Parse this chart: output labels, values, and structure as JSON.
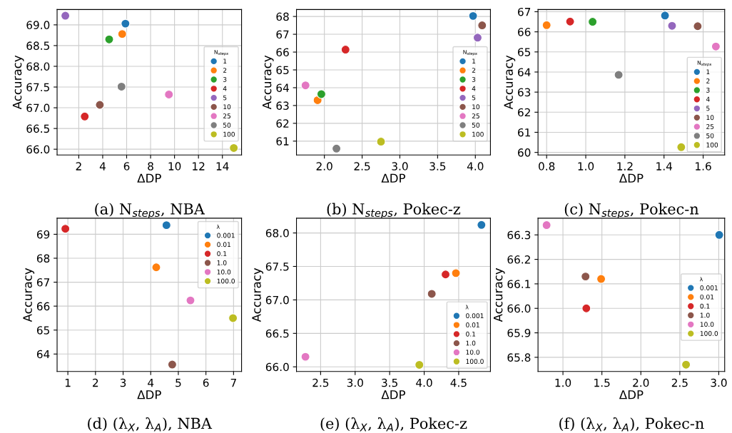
{
  "chart_data": [
    {
      "type": "scatter",
      "xlabel": "ΔDP",
      "ylabel": "Accuracy",
      "legend_title": "N$_{steps}$",
      "legend": "right",
      "grid": true,
      "marker": "circle",
      "annotations": [
        "(a) N$_{steps}$, NBA"
      ],
      "xlim": [
        0.19,
        15.6
      ],
      "ylim": [
        65.86,
        69.37
      ],
      "xticks": [
        2,
        4,
        6,
        8,
        10,
        12,
        14
      ],
      "yticks": [
        {
          "value": 66,
          "label": "66.0"
        },
        66.5,
        {
          "value": 67,
          "label": "67.0"
        },
        67.5,
        {
          "value": 68,
          "label": "68.0"
        },
        68.5,
        {
          "value": 69,
          "label": "69.0"
        }
      ],
      "series": [
        {
          "name": "1",
          "color": "#1f77b4",
          "x": [
            5.9
          ],
          "values": [
            69.03
          ]
        },
        {
          "name": "2",
          "color": "#ff7f0e",
          "x": [
            5.63
          ],
          "values": [
            68.78
          ]
        },
        {
          "name": "3",
          "color": "#2ca02c",
          "x": [
            4.54
          ],
          "values": [
            68.65
          ]
        },
        {
          "name": "4",
          "color": "#d62728",
          "x": [
            2.5
          ],
          "values": [
            66.79
          ]
        },
        {
          "name": "5",
          "color": "#9467bd",
          "x": [
            0.88
          ],
          "values": [
            69.22
          ]
        },
        {
          "name": "10",
          "color": "#8c564b",
          "x": [
            3.76
          ],
          "values": [
            67.07
          ]
        },
        {
          "name": "25",
          "color": "#e377c2",
          "x": [
            9.53
          ],
          "values": [
            67.32
          ]
        },
        {
          "name": "50",
          "color": "#7f7f7f",
          "x": [
            5.57
          ],
          "values": [
            67.51
          ]
        },
        {
          "name": "100",
          "color": "#bcbd22",
          "x": [
            14.95
          ],
          "values": [
            66.03
          ]
        }
      ]
    },
    {
      "type": "scatter",
      "xlabel": "ΔDP",
      "ylabel": "Accuracy",
      "legend_title": "N$_{steps}$",
      "legend": "right",
      "grid": true,
      "marker": "circle",
      "annotations": [
        "(b) N$_{steps}$, Pokec-z"
      ],
      "xlim": [
        1.63,
        4.2
      ],
      "ylim": [
        60.22,
        68.39
      ],
      "xticks": [
        {
          "value": 2,
          "label": "2.0"
        },
        2.5,
        {
          "value": 3,
          "label": "3.0"
        },
        3.5,
        {
          "value": 4,
          "label": "4.0"
        }
      ],
      "yticks": [
        61,
        62,
        63,
        64,
        65,
        66,
        67,
        68
      ],
      "series": [
        {
          "name": "1",
          "color": "#1f77b4",
          "x": [
            3.97
          ],
          "values": [
            68.03
          ]
        },
        {
          "name": "2",
          "color": "#ff7f0e",
          "x": [
            1.91
          ],
          "values": [
            63.3
          ]
        },
        {
          "name": "3",
          "color": "#2ca02c",
          "x": [
            1.96
          ],
          "values": [
            63.64
          ]
        },
        {
          "name": "4",
          "color": "#d62728",
          "x": [
            2.28
          ],
          "values": [
            66.14
          ]
        },
        {
          "name": "5",
          "color": "#9467bd",
          "x": [
            4.03
          ],
          "values": [
            66.81
          ]
        },
        {
          "name": "10",
          "color": "#8c564b",
          "x": [
            4.09
          ],
          "values": [
            67.5
          ]
        },
        {
          "name": "25",
          "color": "#e377c2",
          "x": [
            1.75
          ],
          "values": [
            64.13
          ]
        },
        {
          "name": "50",
          "color": "#7f7f7f",
          "x": [
            2.16
          ],
          "values": [
            60.58
          ]
        },
        {
          "name": "100",
          "color": "#bcbd22",
          "x": [
            2.75
          ],
          "values": [
            60.97
          ]
        }
      ]
    },
    {
      "type": "scatter",
      "xlabel": "ΔDP",
      "ylabel": "Accuracy",
      "legend_title": "N$_{steps}$",
      "legend": "bottom right",
      "grid": true,
      "marker": "circle",
      "annotations": [
        "(c) N$_{steps}$, Pokec-n"
      ],
      "xlim": [
        0.756,
        1.71
      ],
      "ylim": [
        59.87,
        67.11
      ],
      "xticks": [
        0.8,
        {
          "value": 1,
          "label": "1.0"
        },
        1.2,
        1.4,
        1.6
      ],
      "yticks": [
        60,
        61,
        62,
        63,
        64,
        65,
        66,
        67
      ],
      "series": [
        {
          "name": "1",
          "color": "#1f77b4",
          "x": [
            1.405
          ],
          "values": [
            66.81
          ]
        },
        {
          "name": "2",
          "color": "#ff7f0e",
          "x": [
            0.8
          ],
          "values": [
            66.33
          ]
        },
        {
          "name": "3",
          "color": "#2ca02c",
          "x": [
            1.035
          ],
          "values": [
            66.5
          ]
        },
        {
          "name": "4",
          "color": "#d62728",
          "x": [
            0.92
          ],
          "values": [
            66.51
          ]
        },
        {
          "name": "5",
          "color": "#9467bd",
          "x": [
            1.441
          ],
          "values": [
            66.3
          ]
        },
        {
          "name": "10",
          "color": "#8c564b",
          "x": [
            1.572
          ],
          "values": [
            66.28
          ]
        },
        {
          "name": "25",
          "color": "#e377c2",
          "x": [
            1.665
          ],
          "values": [
            65.27
          ]
        },
        {
          "name": "50",
          "color": "#7f7f7f",
          "x": [
            1.168
          ],
          "values": [
            63.86
          ]
        },
        {
          "name": "100",
          "color": "#bcbd22",
          "x": [
            1.488
          ],
          "values": [
            60.26
          ]
        }
      ]
    },
    {
      "type": "scatter",
      "xlabel": "ΔDP",
      "ylabel": "Accuracy",
      "legend_title": "λ",
      "legend": "top right",
      "grid": true,
      "marker": "circle",
      "annotations": [
        "(d) (λ$_{X}$, λ$_{A}$), NBA"
      ],
      "xlim": [
        0.61,
        7.29
      ],
      "ylim": [
        63.27,
        69.67
      ],
      "xticks": [
        1,
        2,
        3,
        4,
        5,
        6,
        7
      ],
      "yticks": [
        64,
        65,
        66,
        67,
        68,
        69
      ],
      "series": [
        {
          "name": "0.001",
          "color": "#1f77b4",
          "x": [
            4.57
          ],
          "values": [
            69.38
          ]
        },
        {
          "name": "0.01",
          "color": "#ff7f0e",
          "x": [
            4.2
          ],
          "values": [
            67.62
          ]
        },
        {
          "name": "0.1",
          "color": "#d62728",
          "x": [
            0.91
          ],
          "values": [
            69.23
          ]
        },
        {
          "name": "1.0",
          "color": "#8c564b",
          "x": [
            4.78
          ],
          "values": [
            63.56
          ]
        },
        {
          "name": "10.0",
          "color": "#e377c2",
          "x": [
            5.44
          ],
          "values": [
            66.24
          ]
        },
        {
          "name": "100.0",
          "color": "#bcbd22",
          "x": [
            6.98
          ],
          "values": [
            65.5
          ]
        }
      ]
    },
    {
      "type": "scatter",
      "xlabel": "ΔDP",
      "ylabel": "Accuracy",
      "legend_title": "λ",
      "legend": "bottom right",
      "grid": true,
      "marker": "circle",
      "annotations": [
        "(e) (λ$_{X}$, λ$_{A}$), Pokec-z"
      ],
      "xlim": [
        2.15,
        4.96
      ],
      "ylim": [
        65.93,
        68.22
      ],
      "xticks": [
        2.5,
        {
          "value": 3,
          "label": "3.0"
        },
        3.5,
        {
          "value": 4,
          "label": "4.0"
        },
        4.5
      ],
      "yticks": [
        {
          "value": 66,
          "label": "66.0"
        },
        66.5,
        {
          "value": 67,
          "label": "67.0"
        },
        67.5,
        {
          "value": 68,
          "label": "68.0"
        }
      ],
      "series": [
        {
          "name": "0.001",
          "color": "#1f77b4",
          "x": [
            4.83
          ],
          "values": [
            68.12
          ]
        },
        {
          "name": "0.01",
          "color": "#ff7f0e",
          "x": [
            4.46
          ],
          "values": [
            67.4
          ]
        },
        {
          "name": "0.1",
          "color": "#d62728",
          "x": [
            4.31
          ],
          "values": [
            67.38
          ]
        },
        {
          "name": "1.0",
          "color": "#8c564b",
          "x": [
            4.11
          ],
          "values": [
            67.09
          ]
        },
        {
          "name": "10.0",
          "color": "#e377c2",
          "x": [
            2.28
          ],
          "values": [
            66.15
          ]
        },
        {
          "name": "100.0",
          "color": "#bcbd22",
          "x": [
            3.93
          ],
          "values": [
            66.03
          ]
        }
      ]
    },
    {
      "type": "scatter",
      "xlabel": "ΔDP",
      "ylabel": "Accuracy",
      "legend_title": "λ",
      "legend": "right",
      "grid": true,
      "marker": "circle",
      "annotations": [
        "(f) (λ$_{X}$, λ$_{A}$), Pokec-n"
      ],
      "xlim": [
        0.68,
        3.076
      ],
      "ylim": [
        65.742,
        66.368
      ],
      "xticks": [
        {
          "value": 1,
          "label": "1.0"
        },
        1.5,
        {
          "value": 2,
          "label": "2.0"
        },
        2.5,
        {
          "value": 3,
          "label": "3.0"
        }
      ],
      "yticks": [
        65.8,
        65.9,
        {
          "value": 66,
          "label": "66.0"
        },
        66.1,
        66.2,
        66.3
      ],
      "series": [
        {
          "name": "0.001",
          "color": "#1f77b4",
          "x": [
            3.006
          ],
          "values": [
            66.3
          ]
        },
        {
          "name": "0.01",
          "color": "#ff7f0e",
          "x": [
            1.49
          ],
          "values": [
            66.12
          ]
        },
        {
          "name": "0.1",
          "color": "#d62728",
          "x": [
            1.3
          ],
          "values": [
            66.0
          ]
        },
        {
          "name": "1.0",
          "color": "#8c564b",
          "x": [
            1.29
          ],
          "values": [
            66.13
          ]
        },
        {
          "name": "10.0",
          "color": "#e377c2",
          "x": [
            0.79
          ],
          "values": [
            66.34
          ]
        },
        {
          "name": "100.0",
          "color": "#bcbd22",
          "x": [
            2.58
          ],
          "values": [
            65.77
          ]
        }
      ]
    }
  ]
}
